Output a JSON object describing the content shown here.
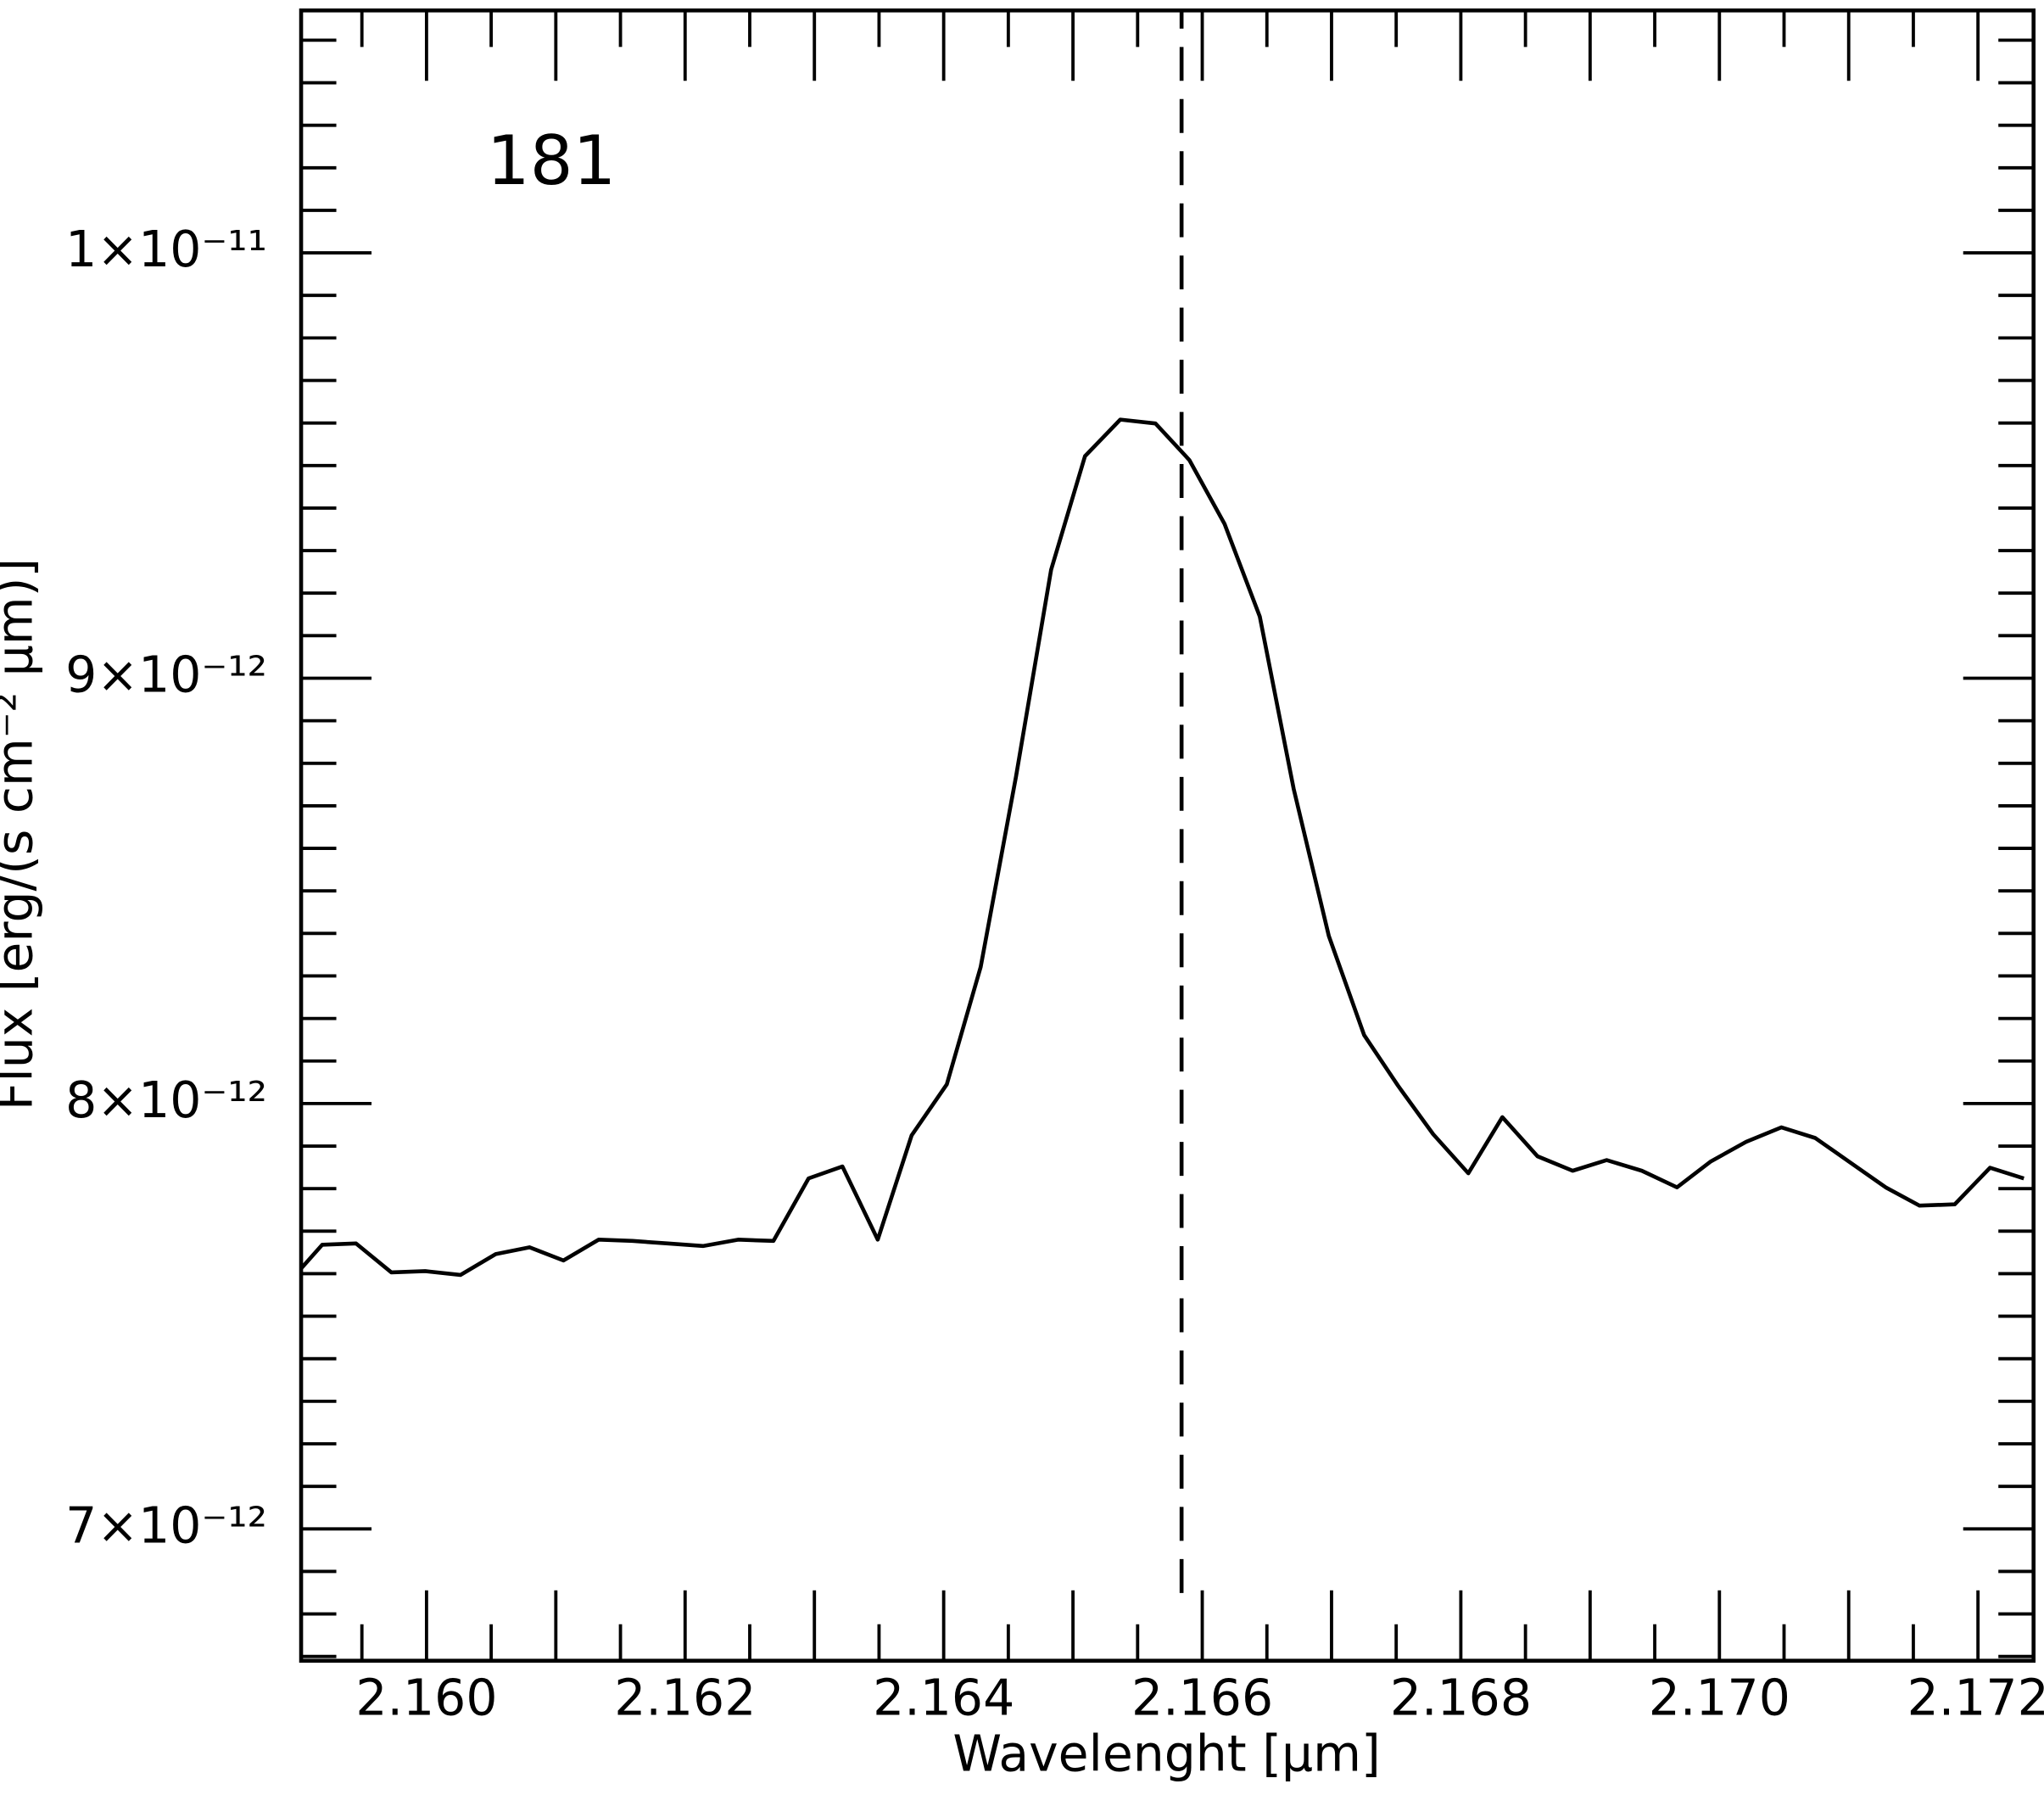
{
  "chart_data": {
    "type": "line",
    "annotation": "181",
    "annotation_color": "#0000ff",
    "xlabel": "Wavelenght [μm]",
    "ylabel": "Flux [erg/(s cm⁻² μm)]",
    "xlim": [
      2.15903,
      2.17243
    ],
    "ylim": [
      6.69e-12,
      1.057e-11
    ],
    "xticks": [
      {
        "value": 2.16,
        "label": "2.160"
      },
      {
        "value": 2.162,
        "label": "2.162"
      },
      {
        "value": 2.164,
        "label": "2.164"
      },
      {
        "value": 2.166,
        "label": "2.166"
      },
      {
        "value": 2.168,
        "label": "2.168"
      },
      {
        "value": 2.17,
        "label": "2.170"
      },
      {
        "value": 2.172,
        "label": "2.172"
      }
    ],
    "xminorticks": [
      2.1595,
      2.1605,
      2.161,
      2.1615,
      2.1625,
      2.163,
      2.1635,
      2.1645,
      2.165,
      2.1655,
      2.1665,
      2.167,
      2.1675,
      2.1685,
      2.169,
      2.1695,
      2.1705,
      2.171,
      2.1715
    ],
    "yticks": [
      {
        "value": 7e-12,
        "label": "7×10⁻¹²"
      },
      {
        "value": 8e-12,
        "label": "8×10⁻¹²"
      },
      {
        "value": 9e-12,
        "label": "9×10⁻¹²"
      },
      {
        "value": 1e-11,
        "label": "1×10⁻¹¹"
      }
    ],
    "yminorticks": [
      6.7e-12,
      6.8e-12,
      6.9e-12,
      7.1e-12,
      7.2e-12,
      7.3e-12,
      7.4e-12,
      7.5e-12,
      7.6e-12,
      7.7e-12,
      7.8e-12,
      7.9e-12,
      8.1e-12,
      8.2e-12,
      8.3e-12,
      8.4e-12,
      8.5e-12,
      8.6e-12,
      8.7e-12,
      8.8e-12,
      8.9e-12,
      9.1e-12,
      9.2e-12,
      9.3e-12,
      9.4e-12,
      9.5e-12,
      9.6e-12,
      9.7e-12,
      9.8e-12,
      9.9e-12,
      1.01e-11,
      1.02e-11,
      1.03e-11,
      1.04e-11,
      1.05e-11
    ],
    "vline": 2.16584,
    "grid": false,
    "series": [
      {
        "color": "#000000",
        "x": [
          2.159032,
          2.159193,
          2.159455,
          2.159728,
          2.15999,
          2.160262,
          2.160535,
          2.160797,
          2.161059,
          2.161331,
          2.161594,
          2.161866,
          2.162138,
          2.16241,
          2.162683,
          2.162955,
          2.163217,
          2.16349,
          2.163752,
          2.164024,
          2.164286,
          2.164559,
          2.164831,
          2.165093,
          2.165366,
          2.165638,
          2.1659,
          2.166172,
          2.166445,
          2.166707,
          2.166979,
          2.167252,
          2.167514,
          2.167786,
          2.168058,
          2.168321,
          2.168593,
          2.168865,
          2.169128,
          2.1694,
          2.169672,
          2.169934,
          2.170207,
          2.170479,
          2.170741,
          2.171014,
          2.171286,
          2.171548,
          2.17182,
          2.172093,
          2.172355
        ],
        "values": [
          7.613e-12,
          7.668e-12,
          7.671e-12,
          7.603e-12,
          7.606e-12,
          7.597e-12,
          7.646e-12,
          7.662e-12,
          7.631e-12,
          7.68e-12,
          7.677e-12,
          7.671e-12,
          7.665e-12,
          7.68e-12,
          7.677e-12,
          7.824e-12,
          7.852e-12,
          7.68e-12,
          7.925e-12,
          8.045e-12,
          8.321e-12,
          8.768e-12,
          9.255e-12,
          9.522e-12,
          9.608e-12,
          9.599e-12,
          9.513e-12,
          9.363e-12,
          9.145e-12,
          8.74e-12,
          8.394e-12,
          8.161e-12,
          8.042e-12,
          7.928e-12,
          7.836e-12,
          7.968e-12,
          7.876e-12,
          7.842e-12,
          7.867e-12,
          7.842e-12,
          7.803e-12,
          7.864e-12,
          7.91e-12,
          7.944e-12,
          7.919e-12,
          7.861e-12,
          7.803e-12,
          7.76e-12,
          7.763e-12,
          7.849e-12,
          7.824e-12
        ]
      }
    ]
  }
}
